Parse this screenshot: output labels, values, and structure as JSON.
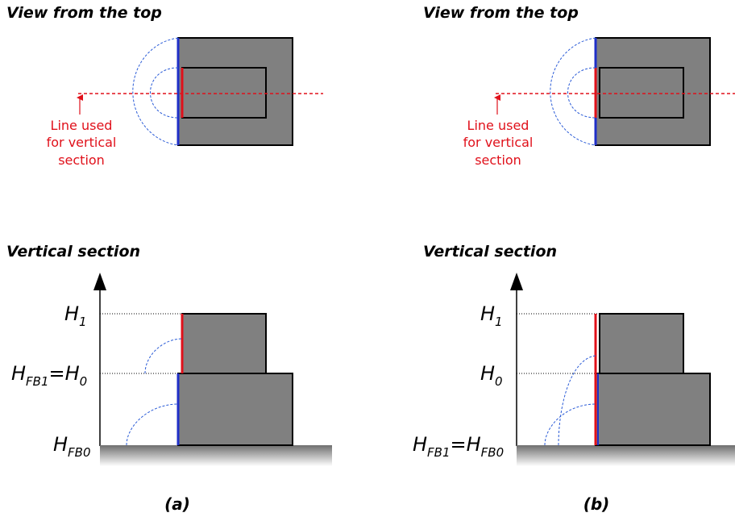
{
  "panel_a": {
    "top_title": "View from the top",
    "note_line1": "Line used",
    "note_line2": "for vertical",
    "note_line3": "section",
    "section_title": "Vertical section",
    "h1": {
      "main": "H",
      "sub": "1"
    },
    "hmid": {
      "main1": "H",
      "sub1": "FB1",
      "eq": "=H",
      "sub2": "0"
    },
    "hbot": {
      "main": "H",
      "sub": "FB0"
    },
    "caption": "(a)"
  },
  "panel_b": {
    "top_title": "View from the top",
    "note_line1": "Line used",
    "note_line2": "for vertical",
    "note_line3": "section",
    "section_title": "Vertical section",
    "h1": {
      "main": "H",
      "sub": "1"
    },
    "hmid": {
      "main": "H",
      "sub": "0"
    },
    "hbot": {
      "main1": "H",
      "sub1": "FB1",
      "eq": "=H",
      "sub2": "FB0"
    },
    "caption": "(b)"
  },
  "colors": {
    "block_fill": "#808080",
    "edge_blue": "#1f2fc8",
    "edge_red": "#e0101a",
    "arc_blue": "#2a5bd7"
  }
}
